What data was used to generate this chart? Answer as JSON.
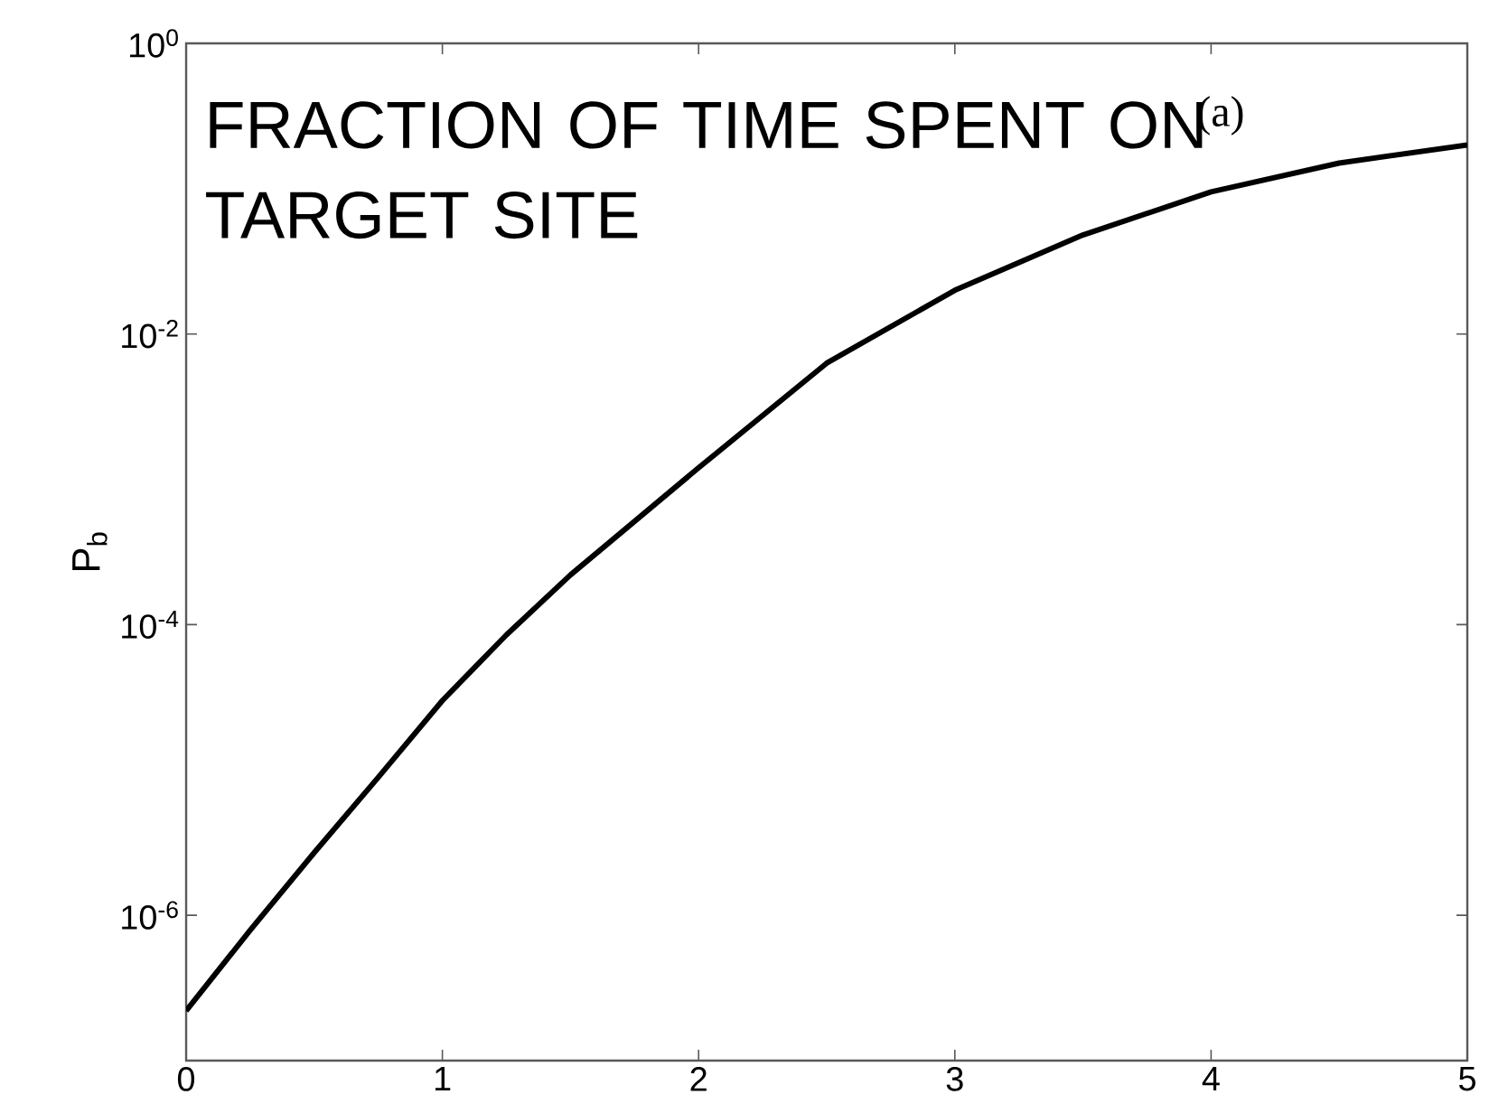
{
  "chart_data": {
    "type": "line",
    "ylabel": "P$_{b}$",
    "annotations": [
      "FRACTION OF TIME SPENT ON TARGET SITE",
      "(a)"
    ],
    "log": "y",
    "grid": false,
    "marker": "none",
    "line_style": "solid",
    "xlim": [
      0,
      5
    ],
    "ylim": [
      1e-07,
      1
    ],
    "xticks": [
      0,
      1,
      2,
      3,
      4,
      5
    ],
    "yticks": [
      {
        "value": 1,
        "label": "10$^{0}$"
      },
      {
        "value": 0.01,
        "label": "10$^{-2}$"
      },
      {
        "value": 0.0001,
        "label": "10$^{-4}$"
      },
      {
        "value": 1e-06,
        "label": "10$^{-6}$"
      }
    ],
    "x": [
      0,
      0.25,
      0.5,
      0.75,
      1,
      1.25,
      1.5,
      2,
      2.5,
      3,
      3.5,
      4,
      4.5,
      5
    ],
    "series": [
      {
        "color": "#000000",
        "values": [
          2.2e-07,
          7.9e-07,
          2.7e-06,
          8.9e-06,
          3e-05,
          8.5e-05,
          0.00022,
          0.0012,
          0.0063,
          0.02,
          0.048,
          0.095,
          0.15,
          0.2
        ]
      }
    ]
  }
}
